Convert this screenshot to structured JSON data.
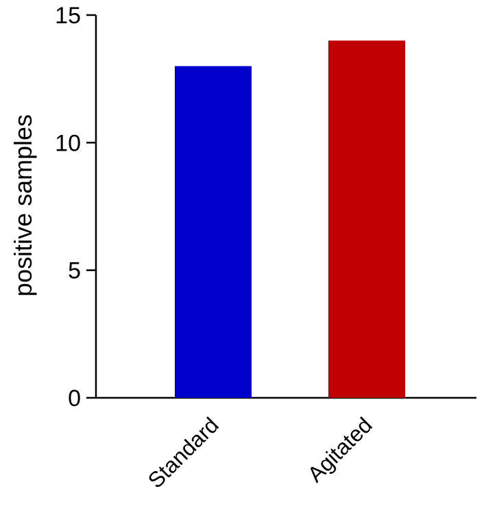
{
  "chart_data": {
    "type": "bar",
    "title": "",
    "xlabel": "",
    "ylabel": "positive samples",
    "categories": [
      "Standard",
      "Agitated"
    ],
    "values": [
      13,
      14
    ],
    "colors": [
      "#0000cc",
      "#c00000"
    ],
    "ylim": [
      0,
      15
    ],
    "yticks": [
      0,
      5,
      10,
      15
    ],
    "ytick_labels": [
      "0",
      "5",
      "10",
      "15"
    ],
    "grid": false,
    "legend": "none"
  }
}
